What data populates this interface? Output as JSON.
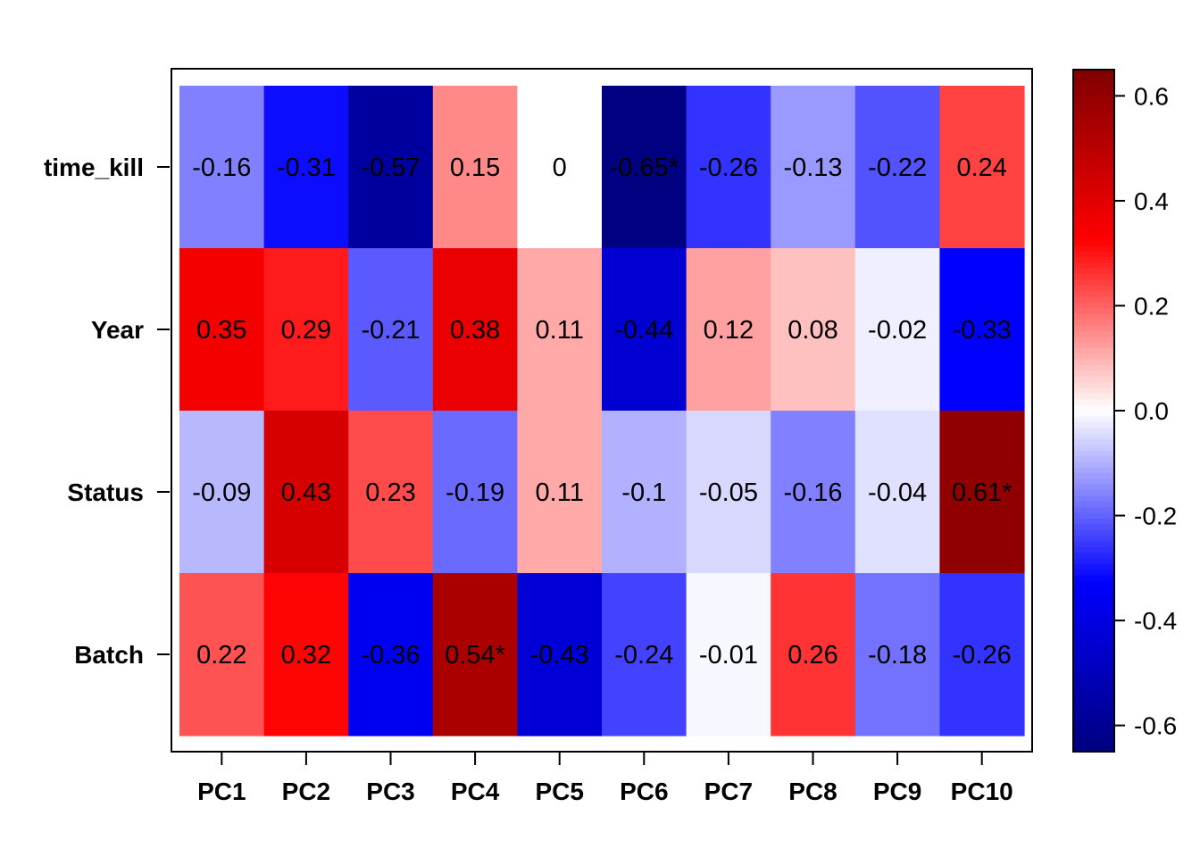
{
  "chart_data": {
    "type": "heatmap",
    "title": "",
    "xlabel": "",
    "ylabel": "",
    "x_categories": [
      "PC1",
      "PC2",
      "PC3",
      "PC4",
      "PC5",
      "PC6",
      "PC7",
      "PC8",
      "PC9",
      "PC10"
    ],
    "y_categories": [
      "time_kill",
      "Year",
      "Status",
      "Batch"
    ],
    "values": [
      [
        -0.16,
        -0.31,
        -0.57,
        0.15,
        0,
        -0.65,
        -0.26,
        -0.13,
        -0.22,
        0.24
      ],
      [
        0.35,
        0.29,
        -0.21,
        0.38,
        0.11,
        -0.44,
        0.12,
        0.08,
        -0.02,
        -0.33
      ],
      [
        -0.09,
        0.43,
        0.23,
        -0.19,
        0.11,
        -0.1,
        -0.05,
        -0.16,
        -0.04,
        0.61
      ],
      [
        0.22,
        0.32,
        -0.36,
        0.54,
        -0.43,
        -0.24,
        -0.01,
        0.26,
        -0.18,
        -0.26
      ]
    ],
    "cell_labels": [
      [
        "-0.16",
        "-0.31",
        "-0.57",
        "0.15",
        "0",
        "-0.65*",
        "-0.26",
        "-0.13",
        "-0.22",
        "0.24"
      ],
      [
        "0.35",
        "0.29",
        "-0.21",
        "0.38",
        "0.11",
        "-0.44",
        "0.12",
        "0.08",
        "-0.02",
        "-0.33"
      ],
      [
        "-0.09",
        "0.43",
        "0.23",
        "-0.19",
        "0.11",
        "-0.1",
        "-0.05",
        "-0.16",
        "-0.04",
        "0.61*"
      ],
      [
        "0.22",
        "0.32",
        "-0.36",
        "0.54*",
        "-0.43",
        "-0.24",
        "-0.01",
        "0.26",
        "-0.18",
        "-0.26"
      ]
    ],
    "colorbar": {
      "range": [
        -0.65,
        0.65
      ],
      "ticks": [
        -0.6,
        -0.4,
        -0.2,
        0.0,
        0.2,
        0.4,
        0.6
      ],
      "tick_labels": [
        "-0.6",
        "-0.4",
        "-0.2",
        "0.0",
        "0.2",
        "0.4",
        "0.6"
      ],
      "colors": [
        "#000080",
        "#0000ff",
        "#ffffff",
        "#ff0000",
        "#800000"
      ]
    },
    "grid": false,
    "legend": "colorbar-right"
  }
}
